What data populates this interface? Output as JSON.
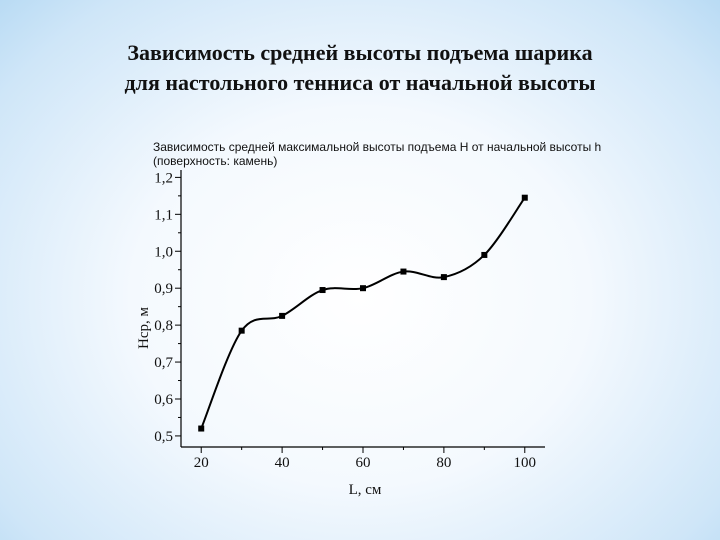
{
  "slide": {
    "title_line1": "Зависимость средней высоты подъема шарика",
    "title_line2": "для настольного тенниса  от начальной высоты"
  },
  "chart_data": {
    "type": "line",
    "title": "Зависимость средней максимальной высоты подъема H от начальной высоты h",
    "subtitle": "(поверхность: камень)",
    "xlabel": "L, см",
    "ylabel": "Hср, м",
    "x": [
      20,
      30,
      40,
      50,
      60,
      70,
      80,
      90,
      100
    ],
    "y": [
      0.52,
      0.785,
      0.825,
      0.895,
      0.9,
      0.945,
      0.93,
      0.99,
      1.145
    ],
    "xlim": [
      15,
      105
    ],
    "ylim": [
      0.47,
      1.22
    ],
    "xticks": [
      "20",
      "40",
      "60",
      "80",
      "100"
    ],
    "yticks": [
      "0,5",
      "0,6",
      "0,7",
      "0,8",
      "0,9",
      "1,0",
      "1,1",
      "1,2"
    ],
    "marker": "square",
    "line": "smooth",
    "grid": false,
    "colors": {
      "line": "#000000",
      "marker": "#000000"
    }
  }
}
